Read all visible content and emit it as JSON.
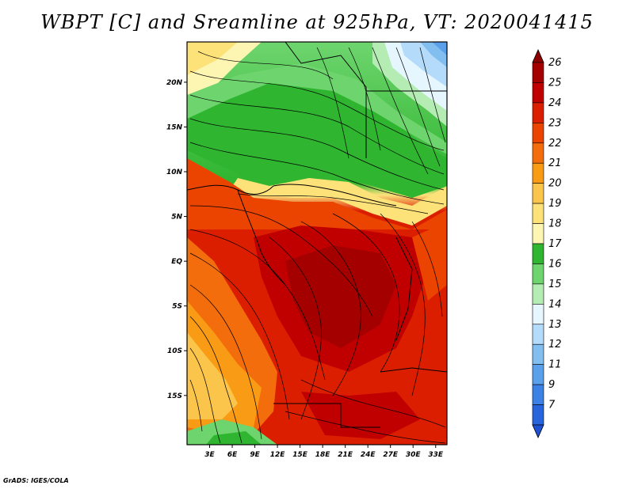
{
  "title": "WBPT [C] and Sreamline at 925hPa, VT: 2020041415",
  "credit": "GrADS: IGES/COLA",
  "map": {
    "lat_range": [
      -20.5,
      24.5
    ],
    "lon_range": [
      0,
      34.5
    ],
    "lat_ticks": [
      {
        "value": 20,
        "label": "20N"
      },
      {
        "value": 15,
        "label": "15N"
      },
      {
        "value": 10,
        "label": "10N"
      },
      {
        "value": 5,
        "label": "5N"
      },
      {
        "value": 0,
        "label": "EQ"
      },
      {
        "value": -5,
        "label": "5S"
      },
      {
        "value": -10,
        "label": "10S"
      },
      {
        "value": -15,
        "label": "15S"
      }
    ],
    "lon_ticks": [
      {
        "value": 3,
        "label": "3E"
      },
      {
        "value": 6,
        "label": "6E"
      },
      {
        "value": 9,
        "label": "9E"
      },
      {
        "value": 12,
        "label": "12E"
      },
      {
        "value": 15,
        "label": "15E"
      },
      {
        "value": 18,
        "label": "18E"
      },
      {
        "value": 21,
        "label": "21E"
      },
      {
        "value": 24,
        "label": "24E"
      },
      {
        "value": 27,
        "label": "27E"
      },
      {
        "value": 30,
        "label": "30E"
      },
      {
        "value": 33,
        "label": "33E"
      }
    ]
  },
  "colorbar": {
    "levels": [
      {
        "label": "26",
        "color": "#a50000"
      },
      {
        "label": "25",
        "color": "#c00000"
      },
      {
        "label": "24",
        "color": "#dc1e00"
      },
      {
        "label": "23",
        "color": "#ea4400"
      },
      {
        "label": "22",
        "color": "#f46d0c"
      },
      {
        "label": "21",
        "color": "#f99b14"
      },
      {
        "label": "20",
        "color": "#fbc44a"
      },
      {
        "label": "19",
        "color": "#fde27a"
      },
      {
        "label": "18",
        "color": "#fdf5b2"
      },
      {
        "label": "17",
        "color": "#2fb52f"
      },
      {
        "label": "16",
        "color": "#6ed56e"
      },
      {
        "label": "15",
        "color": "#b4ecb4"
      },
      {
        "label": "14",
        "color": "#e6f6ff"
      },
      {
        "label": "13",
        "color": "#b4dcfa"
      },
      {
        "label": "12",
        "color": "#82bef0"
      },
      {
        "label": "11",
        "color": "#5aa0ea"
      },
      {
        "label": "9",
        "color": "#3c82e6"
      },
      {
        "label": "7",
        "color": "#2864dc"
      }
    ],
    "top_cap_color": "#8c0000",
    "bottom_cap_color": "#1e50d2"
  }
}
